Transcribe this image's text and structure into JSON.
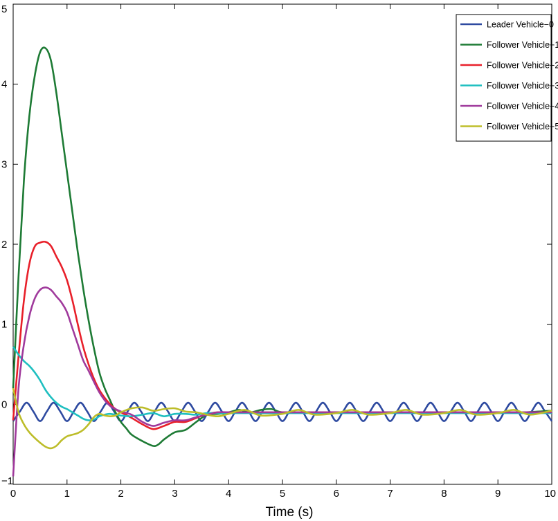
{
  "chart_data": {
    "type": "line",
    "title": "",
    "xlabel": "Time (s)",
    "ylabel": "",
    "xlim": [
      0,
      10
    ],
    "ylim": [
      -1,
      5
    ],
    "xticks": [
      "0",
      "1",
      "2",
      "3",
      "4",
      "5",
      "6",
      "7",
      "8",
      "9",
      "10"
    ],
    "yticks": [
      "−1",
      "0",
      "1",
      "2",
      "3",
      "4",
      "5"
    ],
    "grid": false,
    "legend_position": "top-right",
    "series": [
      {
        "name": "Leader Vehicle−0",
        "color": "#2E4AA0",
        "x": [
          0,
          0.125,
          0.25,
          0.375,
          0.5,
          0.625,
          0.75,
          0.875,
          1,
          1.125,
          1.25,
          1.375,
          1.5,
          1.625,
          1.75,
          1.875,
          2,
          2.125,
          2.25,
          2.375,
          2.5,
          2.625,
          2.75,
          2.875,
          3,
          3.125,
          3.25,
          3.375,
          3.5,
          3.625,
          3.75,
          3.875,
          4,
          4.125,
          4.25,
          4.375,
          4.5,
          4.625,
          4.75,
          4.875,
          5,
          5.125,
          5.25,
          5.375,
          5.5,
          5.625,
          5.75,
          5.875,
          6,
          6.125,
          6.25,
          6.375,
          6.5,
          6.625,
          6.75,
          6.875,
          7,
          7.125,
          7.25,
          7.375,
          7.5,
          7.625,
          7.75,
          7.875,
          8,
          8.125,
          8.25,
          8.375,
          8.5,
          8.625,
          8.75,
          8.875,
          9,
          9.125,
          9.25,
          9.375,
          9.5,
          9.625,
          9.75,
          9.875,
          10
        ],
        "y": [
          -0.21,
          -0.09,
          0.02,
          -0.09,
          -0.21,
          -0.09,
          0.02,
          -0.09,
          -0.21,
          -0.09,
          0.02,
          -0.09,
          -0.21,
          -0.09,
          0.02,
          -0.09,
          -0.21,
          -0.09,
          0.02,
          -0.09,
          -0.21,
          -0.09,
          0.02,
          -0.09,
          -0.21,
          -0.09,
          0.02,
          -0.09,
          -0.21,
          -0.09,
          0.02,
          -0.09,
          -0.21,
          -0.09,
          0.02,
          -0.09,
          -0.21,
          -0.09,
          0.02,
          -0.09,
          -0.21,
          -0.09,
          0.02,
          -0.09,
          -0.21,
          -0.09,
          0.02,
          -0.09,
          -0.21,
          -0.09,
          0.02,
          -0.09,
          -0.21,
          -0.09,
          0.02,
          -0.09,
          -0.21,
          -0.09,
          0.02,
          -0.09,
          -0.21,
          -0.09,
          0.02,
          -0.09,
          -0.21,
          -0.09,
          0.02,
          -0.09,
          -0.21,
          -0.09,
          0.02,
          -0.09,
          -0.21,
          -0.09,
          0.02,
          -0.09,
          -0.21,
          -0.09,
          0.02,
          -0.09,
          -0.21
        ]
      },
      {
        "name": "Follower Vehicle−1",
        "color": "#1E7B35",
        "x": [
          0,
          0.1,
          0.2,
          0.3,
          0.4,
          0.5,
          0.6,
          0.7,
          0.8,
          0.9,
          1.0,
          1.1,
          1.2,
          1.3,
          1.4,
          1.5,
          1.6,
          1.7,
          1.8,
          1.9,
          2.0,
          2.1,
          2.2,
          2.4,
          2.6,
          2.7,
          2.8,
          3.0,
          3.2,
          3.4,
          3.6,
          3.8,
          4.0,
          4.2,
          4.4,
          4.6,
          4.8,
          5.0,
          5.5,
          6.0,
          6.5,
          7.0,
          7.5,
          8.0,
          8.5,
          9.0,
          9.5,
          10
        ],
        "y": [
          0.2,
          1.6,
          2.8,
          3.6,
          4.1,
          4.4,
          4.45,
          4.3,
          3.9,
          3.4,
          2.9,
          2.4,
          1.9,
          1.45,
          1.05,
          0.7,
          0.4,
          0.2,
          0.05,
          -0.1,
          -0.22,
          -0.3,
          -0.38,
          -0.46,
          -0.52,
          -0.5,
          -0.44,
          -0.35,
          -0.32,
          -0.22,
          -0.13,
          -0.12,
          -0.1,
          -0.07,
          -0.1,
          -0.07,
          -0.06,
          -0.1,
          -0.1,
          -0.1,
          -0.1,
          -0.1,
          -0.1,
          -0.1,
          -0.1,
          -0.1,
          -0.1,
          -0.08
        ]
      },
      {
        "name": "Follower Vehicle−2",
        "color": "#E8202A",
        "x": [
          0,
          0.1,
          0.2,
          0.3,
          0.4,
          0.5,
          0.6,
          0.7,
          0.8,
          0.9,
          1.0,
          1.1,
          1.2,
          1.3,
          1.4,
          1.5,
          1.6,
          1.7,
          1.8,
          1.9,
          2.0,
          2.2,
          2.4,
          2.6,
          2.8,
          3.0,
          3.2,
          3.4,
          3.6,
          3.8,
          4.0,
          4.4,
          4.8,
          5.0,
          5.5,
          6.0,
          6.5,
          7.0,
          7.5,
          8.0,
          8.5,
          9.0,
          9.5,
          10
        ],
        "y": [
          -0.2,
          0.6,
          1.3,
          1.75,
          1.97,
          2.02,
          2.03,
          1.98,
          1.85,
          1.72,
          1.55,
          1.3,
          1.0,
          0.72,
          0.5,
          0.32,
          0.18,
          0.08,
          0.0,
          -0.06,
          -0.1,
          -0.17,
          -0.25,
          -0.31,
          -0.27,
          -0.22,
          -0.22,
          -0.17,
          -0.12,
          -0.1,
          -0.1,
          -0.1,
          -0.1,
          -0.1,
          -0.1,
          -0.1,
          -0.1,
          -0.1,
          -0.1,
          -0.1,
          -0.1,
          -0.1,
          -0.1,
          -0.1
        ]
      },
      {
        "name": "Follower Vehicle−3",
        "color": "#1FBFC0",
        "x": [
          0,
          0.1,
          0.2,
          0.3,
          0.4,
          0.5,
          0.6,
          0.7,
          0.8,
          0.9,
          1.0,
          1.1,
          1.2,
          1.3,
          1.4,
          1.5,
          1.6,
          1.7,
          1.8,
          2.0,
          2.2,
          2.4,
          2.6,
          2.8,
          3.0,
          3.2,
          3.4,
          3.6,
          4.0,
          4.5,
          5.0,
          5.5,
          6.0,
          6.5,
          7.0,
          7.5,
          8.0,
          8.5,
          9.0,
          9.5,
          10
        ],
        "y": [
          0.72,
          0.62,
          0.54,
          0.48,
          0.4,
          0.3,
          0.18,
          0.09,
          0.02,
          -0.03,
          -0.06,
          -0.1,
          -0.14,
          -0.18,
          -0.2,
          -0.19,
          -0.15,
          -0.13,
          -0.12,
          -0.14,
          -0.15,
          -0.13,
          -0.11,
          -0.15,
          -0.12,
          -0.12,
          -0.13,
          -0.11,
          -0.11,
          -0.11,
          -0.11,
          -0.11,
          -0.11,
          -0.11,
          -0.11,
          -0.11,
          -0.11,
          -0.11,
          -0.11,
          -0.11,
          -0.11
        ]
      },
      {
        "name": "Follower Vehicle−4",
        "color": "#A03A9C",
        "x": [
          0,
          0.1,
          0.2,
          0.3,
          0.4,
          0.5,
          0.6,
          0.7,
          0.8,
          0.9,
          1.0,
          1.1,
          1.2,
          1.3,
          1.4,
          1.5,
          1.6,
          1.7,
          1.8,
          1.9,
          2.0,
          2.2,
          2.4,
          2.6,
          2.8,
          3.0,
          3.2,
          3.4,
          3.6,
          3.8,
          4.0,
          4.5,
          5.0,
          5.5,
          6.0,
          6.5,
          7.0,
          7.5,
          8.0,
          8.5,
          9.0,
          9.5,
          10
        ],
        "y": [
          -0.9,
          0.2,
          0.75,
          1.1,
          1.32,
          1.43,
          1.46,
          1.43,
          1.35,
          1.27,
          1.15,
          0.95,
          0.75,
          0.55,
          0.42,
          0.28,
          0.15,
          0.05,
          -0.02,
          -0.06,
          -0.09,
          -0.13,
          -0.22,
          -0.27,
          -0.23,
          -0.2,
          -0.2,
          -0.16,
          -0.13,
          -0.1,
          -0.1,
          -0.1,
          -0.1,
          -0.1,
          -0.1,
          -0.1,
          -0.1,
          -0.1,
          -0.1,
          -0.1,
          -0.1,
          -0.1,
          -0.1
        ]
      },
      {
        "name": "Follower Vehicle−5",
        "color": "#BDBD2A",
        "x": [
          0,
          0.1,
          0.2,
          0.3,
          0.4,
          0.5,
          0.6,
          0.7,
          0.8,
          0.9,
          1.0,
          1.1,
          1.2,
          1.3,
          1.4,
          1.5,
          1.6,
          1.7,
          1.8,
          1.9,
          2.0,
          2.2,
          2.4,
          2.6,
          2.8,
          3.0,
          3.2,
          3.4,
          3.6,
          3.8,
          4.0,
          4.3,
          4.6,
          5.0,
          5.3,
          5.6,
          6.0,
          6.3,
          6.6,
          7.0,
          7.3,
          7.6,
          8.0,
          8.3,
          8.6,
          9.0,
          9.3,
          9.6,
          10
        ],
        "y": [
          0.2,
          -0.1,
          -0.25,
          -0.35,
          -0.42,
          -0.48,
          -0.53,
          -0.55,
          -0.52,
          -0.45,
          -0.4,
          -0.38,
          -0.36,
          -0.32,
          -0.25,
          -0.16,
          -0.12,
          -0.14,
          -0.15,
          -0.14,
          -0.1,
          -0.05,
          -0.04,
          -0.08,
          -0.06,
          -0.05,
          -0.09,
          -0.1,
          -0.13,
          -0.15,
          -0.12,
          -0.07,
          -0.14,
          -0.12,
          -0.07,
          -0.13,
          -0.11,
          -0.07,
          -0.13,
          -0.11,
          -0.07,
          -0.13,
          -0.11,
          -0.07,
          -0.13,
          -0.11,
          -0.07,
          -0.13,
          -0.08
        ]
      }
    ]
  }
}
